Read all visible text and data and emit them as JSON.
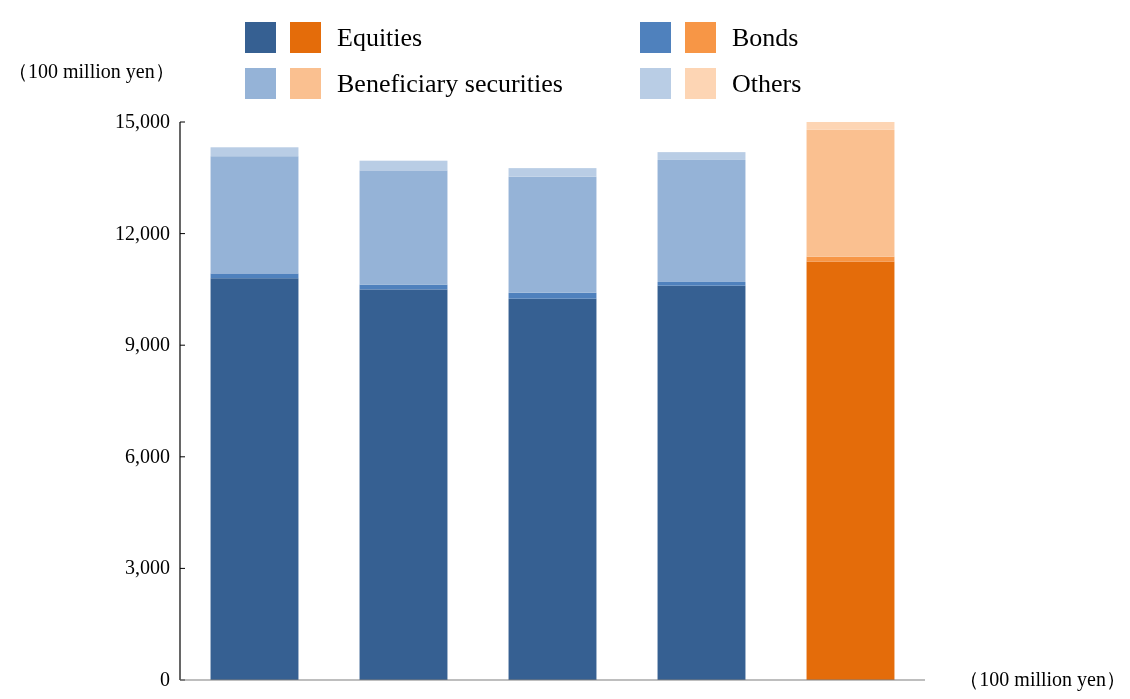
{
  "chart_data": {
    "type": "bar",
    "stacked": true,
    "ylabel": "（100 million yen）",
    "xlabel": "（100 million yen）",
    "categories": [
      null,
      null,
      null,
      null,
      null
    ],
    "series": [
      {
        "name": "Equities",
        "colors": [
          "#366092",
          "#366092",
          "#366092",
          "#366092",
          "#e46c0a"
        ],
        "values": [
          10800,
          10500,
          10250,
          10600,
          11250
        ]
      },
      {
        "name": "Bonds",
        "colors": [
          "#4f81bd",
          "#4f81bd",
          "#4f81bd",
          "#4f81bd",
          "#f79646"
        ],
        "values": [
          130,
          130,
          160,
          100,
          130
        ]
      },
      {
        "name": "Beneficiary securities",
        "colors": [
          "#95b3d7",
          "#95b3d7",
          "#95b3d7",
          "#95b3d7",
          "#fac090"
        ],
        "values": [
          3150,
          3070,
          3120,
          3280,
          3410
        ]
      },
      {
        "name": "Others",
        "colors": [
          "#b9cde5",
          "#b9cde5",
          "#b9cde5",
          "#b9cde5",
          "#fdd5b4"
        ],
        "values": [
          240,
          260,
          230,
          210,
          210
        ]
      }
    ],
    "ylim": [
      0,
      15000
    ],
    "yticks": [
      0,
      {
        "value": 3000,
        "label": "3,000"
      },
      {
        "value": 6000,
        "label": "6,000"
      },
      {
        "value": 9000,
        "label": "9,000"
      },
      {
        "value": 12000,
        "label": "12,000"
      },
      {
        "value": 15000,
        "label": "15,000"
      }
    ],
    "tick_labels": "y",
    "grid": false,
    "legend": "top"
  }
}
